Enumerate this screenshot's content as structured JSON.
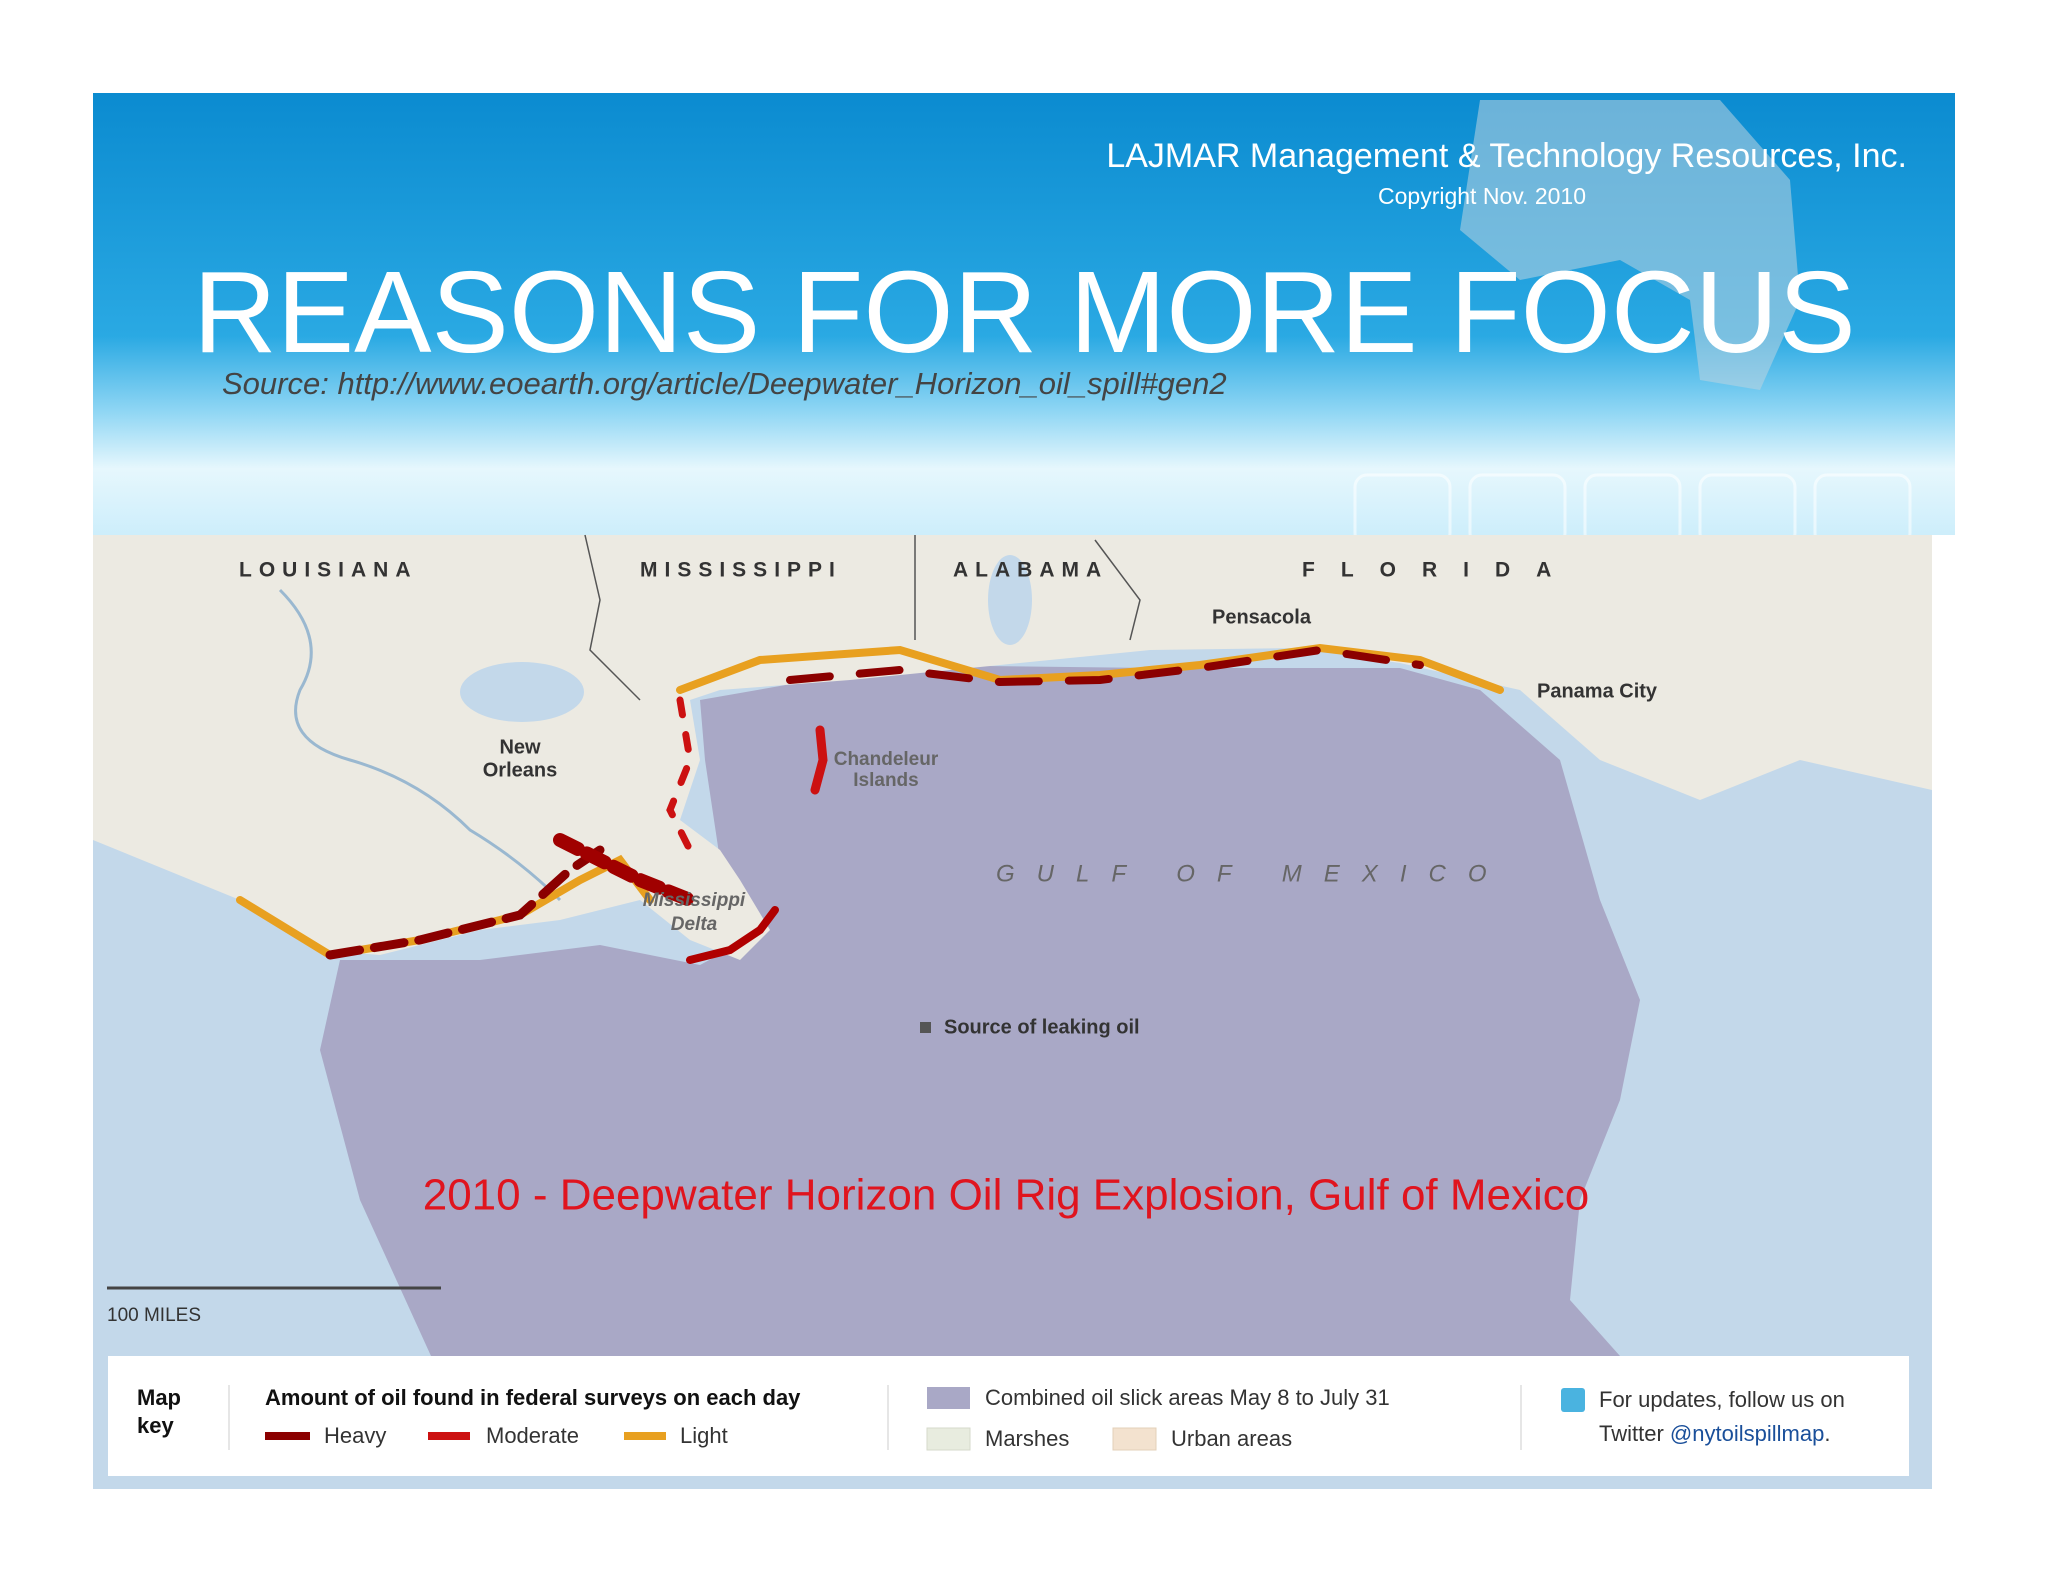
{
  "header": {
    "company": "LAJMAR Management & Technology Resources, Inc.",
    "copyright": "Copyright Nov. 2010",
    "title": "REASONS FOR MORE FOCUS",
    "source": "Source: http://www.eoearth.org/article/Deepwater_Horizon_oil_spill#gen2"
  },
  "map": {
    "states": [
      "LOUISIANA",
      "MISSISSIPPI",
      "ALABAMA",
      "FLORIDA"
    ],
    "cities": [
      "Pensacola",
      "Panama City"
    ],
    "new_orleans": [
      "New",
      "Orleans"
    ],
    "chandeleur": [
      "Chandeleur",
      "Islands"
    ],
    "delta": [
      "Mississippi",
      "Delta"
    ],
    "gulf": "GULF OF MEXICO",
    "source_of_oil": "Source of leaking oil",
    "scale": "100 MILES",
    "caption": "2010 - Deepwater  Horizon Oil Rig Explosion, Gulf of Mexico"
  },
  "legend": {
    "map_key": [
      "Map",
      "key"
    ],
    "amount_title": "Amount of oil found in federal surveys on each day",
    "levels": [
      "Heavy",
      "Moderate",
      "Light"
    ],
    "areas": [
      "Combined oil slick areas May 8 to July 31",
      "Marshes",
      "Urban areas"
    ],
    "twitter": [
      "For updates, follow us on",
      "Twitter",
      "@nytoilspillmap",
      "."
    ]
  }
}
